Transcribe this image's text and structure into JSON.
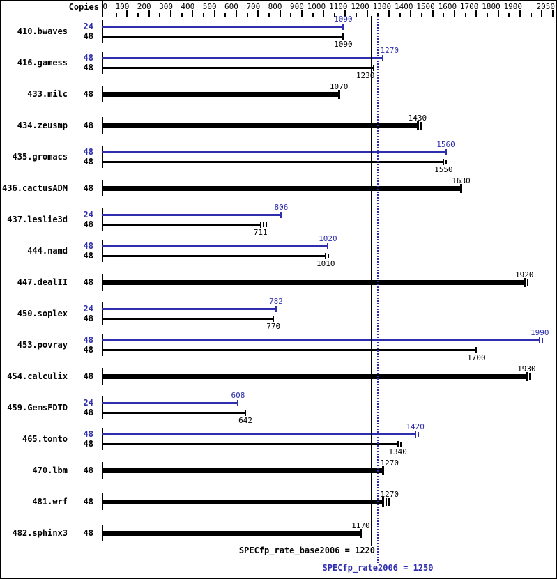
{
  "header": {
    "copies_label": "Copies"
  },
  "colors": {
    "peak_blue": "#2e2eae",
    "base_black": "#000000",
    "background": "#ffffff",
    "border": "#000000"
  },
  "chart_data": {
    "type": "bar",
    "orientation": "horizontal",
    "title": "",
    "xlabel": "",
    "ylabel": "",
    "xlim": [
      0,
      2050
    ],
    "tick_labels": [
      0,
      100,
      200,
      300,
      400,
      500,
      600,
      700,
      800,
      900,
      1000,
      1100,
      1200,
      1300,
      1400,
      1500,
      1600,
      1700,
      1800,
      1900,
      2050
    ],
    "major_tick_step": 100,
    "minor_tick_step": 50,
    "grid": false,
    "legend_position": "bottom",
    "series_colors": {
      "peak": "#2e2eae",
      "base": "#000000"
    },
    "benchmarks": [
      {
        "name": "410.bwaves",
        "bars": [
          {
            "series": "peak",
            "copies": "24",
            "value": 1090,
            "extra_ticks": 0
          },
          {
            "series": "base",
            "copies": "48",
            "value": 1090,
            "extra_ticks": 0
          }
        ]
      },
      {
        "name": "416.gamess",
        "bars": [
          {
            "series": "peak",
            "copies": "48",
            "value": 1270,
            "extra_ticks": 0
          },
          {
            "series": "base",
            "copies": "48",
            "value": 1230,
            "extra_ticks": 0
          }
        ]
      },
      {
        "name": "433.milc",
        "bars": [
          {
            "series": "base",
            "copies": "48",
            "value": 1070,
            "extra_ticks": 0
          }
        ]
      },
      {
        "name": "434.zeusmp",
        "bars": [
          {
            "series": "base",
            "copies": "48",
            "value": 1430,
            "extra_ticks": 1
          }
        ]
      },
      {
        "name": "435.gromacs",
        "bars": [
          {
            "series": "peak",
            "copies": "48",
            "value": 1560,
            "extra_ticks": 0
          },
          {
            "series": "base",
            "copies": "48",
            "value": 1550,
            "extra_ticks": 1
          }
        ]
      },
      {
        "name": "436.cactusADM",
        "bars": [
          {
            "series": "base",
            "copies": "48",
            "value": 1630,
            "extra_ticks": 0
          }
        ]
      },
      {
        "name": "437.leslie3d",
        "bars": [
          {
            "series": "peak",
            "copies": "24",
            "value": 806,
            "extra_ticks": 0
          },
          {
            "series": "base",
            "copies": "48",
            "value": 711,
            "extra_ticks": 2
          }
        ]
      },
      {
        "name": "444.namd",
        "bars": [
          {
            "series": "peak",
            "copies": "48",
            "value": 1020,
            "extra_ticks": 0
          },
          {
            "series": "base",
            "copies": "48",
            "value": 1010,
            "extra_ticks": 1
          }
        ]
      },
      {
        "name": "447.dealII",
        "bars": [
          {
            "series": "base",
            "copies": "48",
            "value": 1920,
            "extra_ticks": 1
          }
        ]
      },
      {
        "name": "450.soplex",
        "bars": [
          {
            "series": "peak",
            "copies": "24",
            "value": 782,
            "extra_ticks": 0
          },
          {
            "series": "base",
            "copies": "48",
            "value": 770,
            "extra_ticks": 0
          }
        ]
      },
      {
        "name": "453.povray",
        "bars": [
          {
            "series": "peak",
            "copies": "48",
            "value": 1990,
            "extra_ticks": 1
          },
          {
            "series": "base",
            "copies": "48",
            "value": 1700,
            "extra_ticks": 0
          }
        ]
      },
      {
        "name": "454.calculix",
        "bars": [
          {
            "series": "base",
            "copies": "48",
            "value": 1930,
            "extra_ticks": 1
          }
        ]
      },
      {
        "name": "459.GemsFDTD",
        "bars": [
          {
            "series": "peak",
            "copies": "24",
            "value": 608,
            "extra_ticks": 0
          },
          {
            "series": "base",
            "copies": "48",
            "value": 642,
            "extra_ticks": 0
          }
        ]
      },
      {
        "name": "465.tonto",
        "bars": [
          {
            "series": "peak",
            "copies": "48",
            "value": 1420,
            "extra_ticks": 1
          },
          {
            "series": "base",
            "copies": "48",
            "value": 1340,
            "extra_ticks": 1
          }
        ]
      },
      {
        "name": "470.lbm",
        "bars": [
          {
            "series": "base",
            "copies": "48",
            "value": 1270,
            "extra_ticks": 0
          }
        ]
      },
      {
        "name": "481.wrf",
        "bars": [
          {
            "series": "base",
            "copies": "48",
            "value": 1270,
            "extra_ticks": 2
          }
        ]
      },
      {
        "name": "482.sphinx3",
        "bars": [
          {
            "series": "base",
            "copies": "48",
            "value": 1170,
            "extra_ticks": 0
          }
        ]
      }
    ],
    "reference_lines": [
      {
        "series": "base",
        "label": "SPECfp_rate_base2006 = 1220",
        "value": 1220,
        "style": "solid",
        "color": "#000000"
      },
      {
        "series": "peak",
        "label": "SPECfp_rate2006 = 1250",
        "value": 1250,
        "style": "dotted",
        "color": "#2e2eae"
      }
    ]
  }
}
